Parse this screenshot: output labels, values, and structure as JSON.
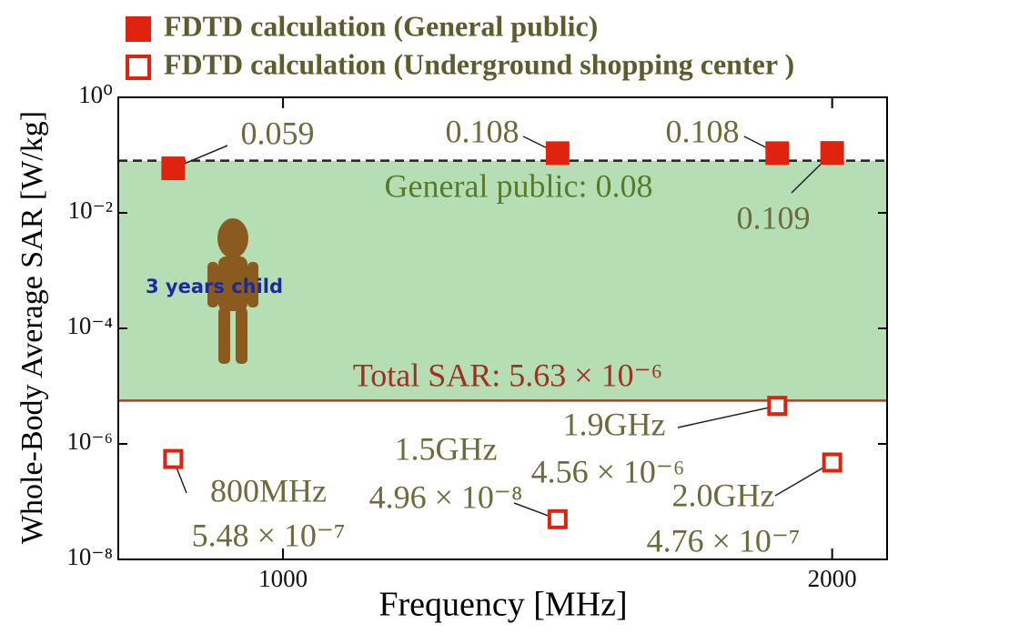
{
  "chart_data": {
    "type": "scatter",
    "xlabel": "Frequency [MHz]",
    "ylabel": "Whole-Body Average SAR [W/kg]",
    "xlim": [
      700,
      2100
    ],
    "xticks": [
      1000,
      2000
    ],
    "ylim": [
      1e-08,
      1
    ],
    "log_y": true,
    "yticks": [
      {
        "value": 1,
        "label": "10⁰"
      },
      {
        "value": 0.01,
        "label": "10⁻²"
      },
      {
        "value": 0.0001,
        "label": "10⁻⁴"
      },
      {
        "value": 1e-06,
        "label": "10⁻⁶"
      },
      {
        "value": 1e-08,
        "label": "10⁻⁸"
      }
    ],
    "series": [
      {
        "name": "FDTD calculation (General public)",
        "color": "#e0230f",
        "marker": "filled",
        "x": [
          800,
          1500,
          1900,
          2000
        ],
        "values": [
          0.059,
          0.108,
          0.108,
          0.109
        ],
        "value_labels": [
          "0.059",
          "0.108",
          "0.108",
          "0.109"
        ]
      },
      {
        "name": "FDTD calculation (Underground shopping center )",
        "color": "#e0230f",
        "marker": "hollow",
        "x": [
          800,
          1500,
          1900,
          2000
        ],
        "values": [
          5.48e-07,
          4.96e-08,
          4.56e-06,
          4.76e-07
        ],
        "value_labels": [
          "5.48 × 10⁻⁷",
          "4.96 × 10⁻⁸",
          "4.56 × 10⁻⁶",
          "4.76 × 10⁻⁷"
        ],
        "point_names": [
          "800MHz",
          "1.5GHz",
          "1.9GHz",
          "2.0GHz"
        ]
      }
    ],
    "reference_lines": [
      {
        "value": 0.08,
        "label": "General public: 0.08",
        "color": "#222222",
        "style": "dashed",
        "label_color": "#5a7a2a"
      },
      {
        "value": 5.63e-06,
        "label": "Total SAR: 5.63 × 10⁻⁶",
        "color": "#c8321e",
        "style": "solid",
        "label_color": "#a03020"
      }
    ],
    "band_color": "#b5deb5",
    "annotation": "3 years child"
  }
}
